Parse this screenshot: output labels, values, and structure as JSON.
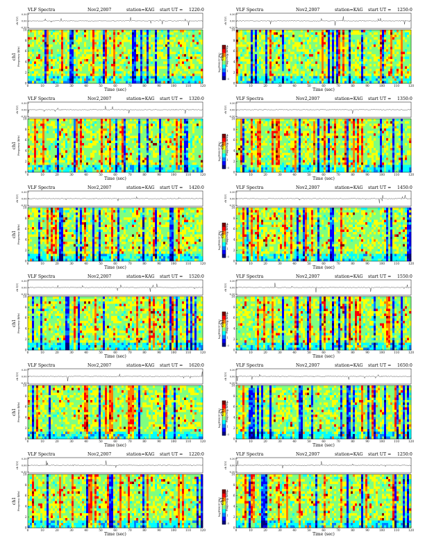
{
  "chart_data": {
    "type": "heatmap",
    "header_title": "VLF Spectra",
    "date": "Nov2,2007",
    "station": "station=KAG",
    "start_prefix": "start  UT  =",
    "upper_ylabel": "ch 1(V)",
    "upper_yticks": [
      "0.30",
      "0.00",
      "-0.30"
    ],
    "upper_ylim": [
      -0.3,
      0.3
    ],
    "ylabel_ch": "ch1",
    "ylabel": "Frequency  (kHz)",
    "xlabel": "Time  (sec)",
    "xlim": [
      0,
      120
    ],
    "ylim": [
      0,
      10
    ],
    "xticks": [
      "0",
      "10",
      "20",
      "30",
      "40",
      "50",
      "60",
      "70",
      "80",
      "90",
      "100",
      "110",
      "120"
    ],
    "yticks": [
      "0",
      "2",
      "4",
      "6",
      "8",
      "10"
    ],
    "colorbar_label": "log(PSD)(V²/Hz)",
    "colorbar_ticks": [
      "4",
      "3",
      "2",
      "1",
      "-3"
    ],
    "colors": [
      "#00007f",
      "#0000ff",
      "#007fff",
      "#00ffff",
      "#7fff7f",
      "#ffff00",
      "#ff7f00",
      "#ff0000",
      "#7f0000"
    ],
    "panels": [
      {
        "start_ut": "1220:0"
      },
      {
        "start_ut": "1250:0"
      },
      {
        "start_ut": "1320:0"
      },
      {
        "start_ut": "1350:0"
      },
      {
        "start_ut": "1420:0"
      },
      {
        "start_ut": "1450:0"
      },
      {
        "start_ut": "1520:0"
      },
      {
        "start_ut": "1550:0"
      },
      {
        "start_ut": "1620:0"
      },
      {
        "start_ut": "1650:0"
      },
      {
        "start_ut": "1220:0"
      },
      {
        "start_ut": "1250:0"
      }
    ]
  }
}
